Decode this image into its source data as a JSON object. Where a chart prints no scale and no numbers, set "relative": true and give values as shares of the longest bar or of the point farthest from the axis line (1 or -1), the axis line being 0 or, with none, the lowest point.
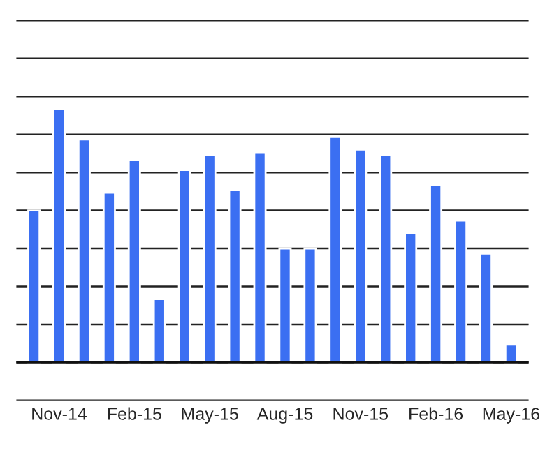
{
  "chart_data": {
    "type": "bar",
    "relative": true,
    "grid": "y",
    "legend": false,
    "color": "#3b6ff2",
    "categories": [
      null,
      "Nov-14",
      null,
      null,
      "Feb-15",
      null,
      null,
      "May-15",
      null,
      null,
      "Aug-15",
      null,
      null,
      "Nov-15",
      null,
      null,
      "Feb-16",
      null,
      null,
      "May-16"
    ],
    "values": [
      0.6,
      1,
      0.88,
      0.67,
      0.8,
      0.25,
      0.76,
      0.82,
      0.68,
      0.83,
      0.45,
      0.45,
      0.89,
      0.84,
      0.82,
      0.51,
      0.7,
      0.56,
      0.43,
      0.07
    ]
  }
}
